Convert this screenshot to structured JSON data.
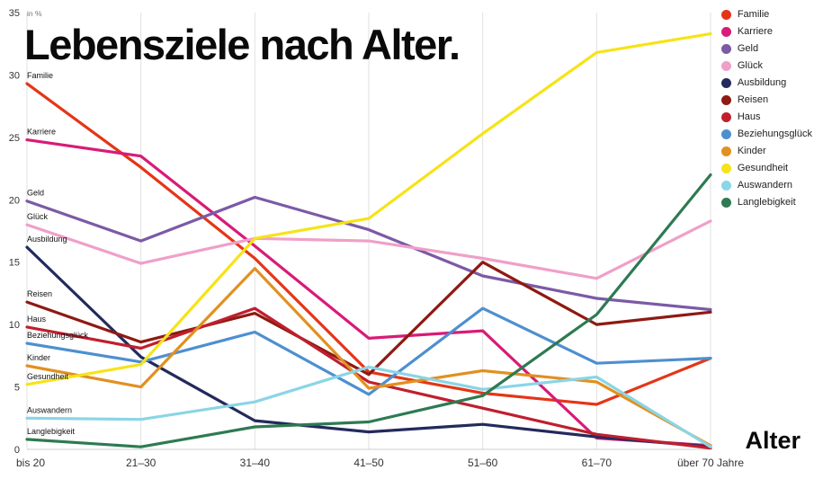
{
  "title": "Lebensziele nach Alter.",
  "axis": {
    "y_unit": "in %",
    "x_label": "Alter",
    "y_ticks": [
      0,
      5,
      10,
      15,
      20,
      25,
      30,
      35
    ]
  },
  "chart_data": {
    "type": "line",
    "title": "Lebensziele nach Alter.",
    "xlabel": "Alter",
    "ylabel": "in %",
    "ylim": [
      0,
      35
    ],
    "grid": "vertical",
    "legend_position": "top-right",
    "categories": [
      "bis 20",
      "21–30",
      "31–40",
      "41–50",
      "51–60",
      "61–70",
      "über 70 Jahre"
    ],
    "series": [
      {
        "name": "Familie",
        "color": "#e53517",
        "values": [
          29.3,
          22.6,
          15.3,
          6.2,
          4.5,
          3.6,
          7.3
        ]
      },
      {
        "name": "Karriere",
        "color": "#d81b77",
        "values": [
          24.8,
          23.5,
          16.3,
          8.9,
          9.5,
          0.9,
          0.3
        ]
      },
      {
        "name": "Geld",
        "color": "#7b5aa6",
        "values": [
          19.9,
          16.7,
          20.2,
          17.6,
          13.9,
          12.1,
          11.2
        ]
      },
      {
        "name": "Glück",
        "color": "#efa0c8",
        "values": [
          18.0,
          14.9,
          16.9,
          16.7,
          15.3,
          13.7,
          18.3
        ]
      },
      {
        "name": "Ausbildung",
        "color": "#232a5c",
        "values": [
          16.2,
          7.4,
          2.3,
          1.4,
          2.0,
          1.0,
          0.2
        ]
      },
      {
        "name": "Reisen",
        "color": "#8e1a12",
        "values": [
          11.8,
          8.6,
          10.9,
          6.0,
          15.0,
          10.0,
          11.0
        ]
      },
      {
        "name": "Haus",
        "color": "#bf1f2e",
        "values": [
          9.8,
          8.1,
          11.3,
          5.4,
          3.3,
          1.2,
          0.1
        ]
      },
      {
        "name": "Beziehungsglück",
        "color": "#4e8fd0",
        "values": [
          8.5,
          7.0,
          9.4,
          4.4,
          11.3,
          6.9,
          7.3
        ]
      },
      {
        "name": "Kinder",
        "color": "#e2901f",
        "values": [
          6.7,
          5.0,
          14.5,
          4.9,
          6.3,
          5.4,
          0.3
        ]
      },
      {
        "name": "Gesundheit",
        "color": "#f6e318",
        "values": [
          5.2,
          6.8,
          16.9,
          18.5,
          25.3,
          31.8,
          33.3
        ]
      },
      {
        "name": "Auswandern",
        "color": "#8ad5e6",
        "values": [
          2.5,
          2.4,
          3.8,
          6.6,
          4.8,
          5.8,
          0.2
        ]
      },
      {
        "name": "Langlebigkeit",
        "color": "#2e7a52",
        "values": [
          0.8,
          0.2,
          1.8,
          2.2,
          4.3,
          10.8,
          22.0
        ]
      }
    ]
  }
}
